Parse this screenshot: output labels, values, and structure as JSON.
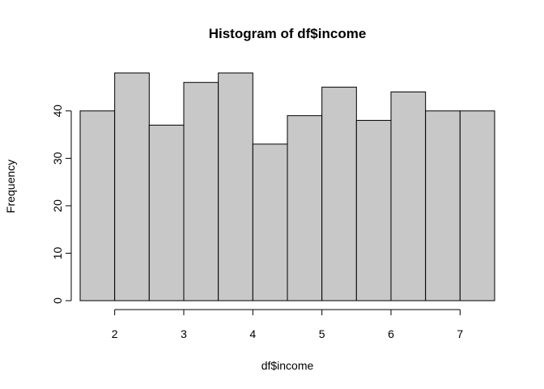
{
  "chart_data": {
    "type": "bar",
    "title": "Histogram of df$income",
    "xlabel": "df$income",
    "ylabel": "Frequency",
    "bin_edges": [
      1.5,
      2.0,
      2.5,
      3.0,
      3.5,
      4.0,
      4.5,
      5.0,
      5.5,
      6.0,
      6.5,
      7.0,
      7.5
    ],
    "values": [
      40,
      48,
      37,
      46,
      48,
      33,
      39,
      45,
      38,
      44,
      40,
      40
    ],
    "xlim": [
      1.5,
      7.5
    ],
    "ylim": [
      0,
      48
    ],
    "x_ticks": [
      2,
      3,
      4,
      5,
      6,
      7
    ],
    "y_ticks": [
      0,
      10,
      20,
      30,
      40
    ],
    "bar_fill": "#c8c8c8",
    "bar_stroke": "#000000",
    "grid": false,
    "legend": "none"
  }
}
